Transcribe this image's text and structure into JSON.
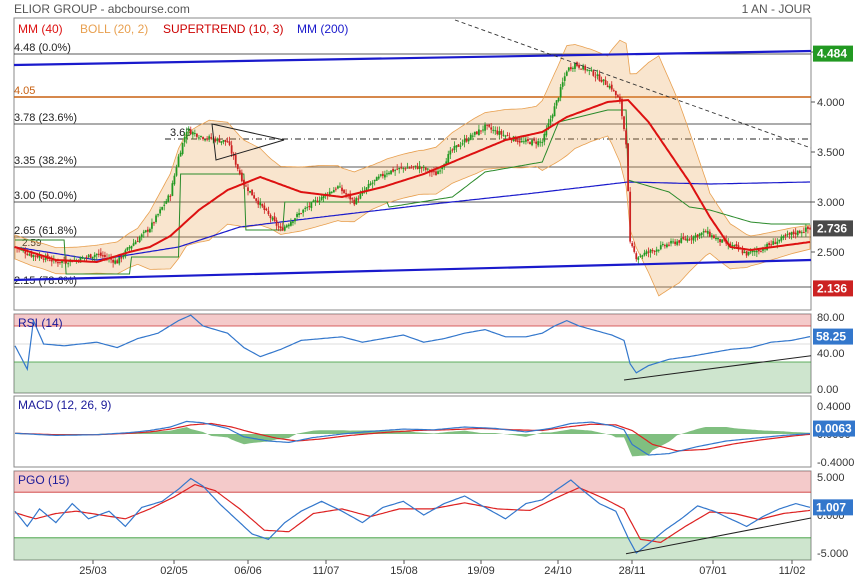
{
  "header": {
    "title": "ELIOR GROUP - abcbourse.com",
    "period": "1 AN - JOUR"
  },
  "colors": {
    "mm40": "#dd1111",
    "boll": "#e8a050",
    "supertrend": "#cc0000",
    "mm200": "#1a1acc",
    "candle_up": "#229922",
    "candle_down": "#cc2222",
    "trend": "#1a1acc",
    "resistance": "#c86010",
    "price_badge": "#4a4a4a",
    "rsi": "#3377cc",
    "signal": "#dd2222",
    "macd_hist": "#55aa55"
  },
  "chart_data": [
    {
      "id": "price",
      "type": "line",
      "legend": [
        "MM (40)",
        "BOLL (20, 2)",
        "SUPERTREND (10, 3)",
        "MM (200)"
      ],
      "x_ticks": [
        "25/03",
        "02/05",
        "06/06",
        "11/07",
        "15/08",
        "19/09",
        "24/10",
        "28/11",
        "07/01",
        "11/02"
      ],
      "y_ticks": [
        "4.500",
        "4.000",
        "3.500",
        "3.000",
        "2.500"
      ],
      "ylim": [
        2.0,
        4.6
      ],
      "fib_levels": [
        {
          "value": 4.48,
          "label": "4.48 (0.0%)"
        },
        {
          "value": 3.78,
          "label": "3.78 (23.6%)"
        },
        {
          "value": 3.35,
          "label": "3.35 (38.2%)"
        },
        {
          "value": 3.0,
          "label": "3.00 (50.0%)"
        },
        {
          "value": 2.65,
          "label": "2.65 (61.8%)"
        },
        {
          "value": 2.15,
          "label": "2.15 (78.6%)"
        }
      ],
      "resistance": {
        "value": 4.05,
        "label": "4.05"
      },
      "pivot": {
        "value": 3.63,
        "label": "3.63"
      },
      "extra_label": "2.59",
      "badges": [
        {
          "value": 4.484,
          "label": "4.484",
          "kind": "top"
        },
        {
          "value": 2.736,
          "label": "2.736",
          "kind": "last"
        },
        {
          "value": 2.136,
          "label": "2.136",
          "kind": "low"
        }
      ],
      "close_anchors": [
        [
          0,
          2.55
        ],
        [
          8,
          2.47
        ],
        [
          14,
          2.45
        ],
        [
          20,
          2.4
        ],
        [
          30,
          2.42
        ],
        [
          40,
          2.48
        ],
        [
          50,
          2.4
        ],
        [
          56,
          2.55
        ],
        [
          66,
          2.74
        ],
        [
          76,
          3.08
        ],
        [
          80,
          3.45
        ],
        [
          84,
          3.72
        ],
        [
          92,
          3.65
        ],
        [
          104,
          3.6
        ],
        [
          112,
          3.18
        ],
        [
          122,
          2.92
        ],
        [
          130,
          2.72
        ],
        [
          140,
          2.9
        ],
        [
          150,
          3.05
        ],
        [
          158,
          3.15
        ],
        [
          166,
          3.0
        ],
        [
          174,
          3.18
        ],
        [
          182,
          3.3
        ],
        [
          190,
          3.34
        ],
        [
          198,
          3.35
        ],
        [
          206,
          3.28
        ],
        [
          214,
          3.52
        ],
        [
          222,
          3.64
        ],
        [
          230,
          3.75
        ],
        [
          238,
          3.68
        ],
        [
          248,
          3.6
        ],
        [
          258,
          3.6
        ],
        [
          266,
          4.06
        ],
        [
          270,
          4.32
        ],
        [
          274,
          4.38
        ],
        [
          282,
          4.3
        ],
        [
          292,
          4.14
        ],
        [
          296,
          4.0
        ],
        [
          299,
          3.6
        ],
        [
          301,
          2.58
        ],
        [
          304,
          2.45
        ],
        [
          310,
          2.5
        ],
        [
          320,
          2.58
        ],
        [
          330,
          2.64
        ],
        [
          338,
          2.7
        ],
        [
          344,
          2.62
        ],
        [
          352,
          2.55
        ],
        [
          358,
          2.48
        ],
        [
          364,
          2.52
        ],
        [
          372,
          2.6
        ],
        [
          380,
          2.68
        ],
        [
          389,
          2.736
        ]
      ],
      "mm40_anchors": [
        [
          0,
          2.55
        ],
        [
          20,
          2.42
        ],
        [
          40,
          2.4
        ],
        [
          56,
          2.5
        ],
        [
          66,
          2.55
        ],
        [
          76,
          2.66
        ],
        [
          90,
          2.92
        ],
        [
          104,
          3.12
        ],
        [
          120,
          3.25
        ],
        [
          140,
          3.1
        ],
        [
          160,
          3.05
        ],
        [
          180,
          3.15
        ],
        [
          200,
          3.28
        ],
        [
          220,
          3.45
        ],
        [
          240,
          3.62
        ],
        [
          258,
          3.7
        ],
        [
          270,
          3.85
        ],
        [
          290,
          4.0
        ],
        [
          300,
          4.02
        ],
        [
          310,
          3.8
        ],
        [
          320,
          3.5
        ],
        [
          330,
          3.2
        ],
        [
          340,
          2.85
        ],
        [
          350,
          2.55
        ],
        [
          360,
          2.52
        ],
        [
          389,
          2.6
        ]
      ],
      "mm200_anchors": [
        [
          0,
          2.55
        ],
        [
          40,
          2.42
        ],
        [
          80,
          2.55
        ],
        [
          110,
          2.75
        ],
        [
          150,
          2.85
        ],
        [
          200,
          2.97
        ],
        [
          250,
          3.08
        ],
        [
          300,
          3.2
        ],
        [
          340,
          3.18
        ],
        [
          389,
          3.2
        ]
      ],
      "supertrend_anchors": [
        [
          0,
          2.62
        ],
        [
          24,
          2.62
        ],
        [
          25,
          2.28
        ],
        [
          56,
          2.28
        ],
        [
          57,
          2.45
        ],
        [
          80,
          2.45
        ],
        [
          81,
          3.28
        ],
        [
          112,
          3.28
        ],
        [
          113,
          2.72
        ],
        [
          131,
          2.72
        ],
        [
          132,
          3.0
        ],
        [
          182,
          3.0
        ],
        [
          183,
          2.95
        ],
        [
          214,
          3.05
        ],
        [
          230,
          3.3
        ],
        [
          258,
          3.4
        ],
        [
          266,
          3.8
        ],
        [
          290,
          3.92
        ],
        [
          299,
          3.92
        ],
        [
          300,
          3.22
        ],
        [
          320,
          3.1
        ],
        [
          330,
          2.95
        ],
        [
          340,
          2.92
        ],
        [
          350,
          2.86
        ],
        [
          360,
          2.8
        ],
        [
          370,
          2.78
        ],
        [
          389,
          2.78
        ]
      ],
      "boll_width_anchors": [
        [
          0,
          0.12
        ],
        [
          40,
          0.14
        ],
        [
          60,
          0.18
        ],
        [
          80,
          0.55
        ],
        [
          95,
          0.6
        ],
        [
          110,
          0.45
        ],
        [
          125,
          0.35
        ],
        [
          150,
          0.3
        ],
        [
          175,
          0.22
        ],
        [
          200,
          0.22
        ],
        [
          225,
          0.28
        ],
        [
          255,
          0.3
        ],
        [
          270,
          0.55
        ],
        [
          290,
          0.4
        ],
        [
          300,
          0.75
        ],
        [
          315,
          1.2
        ],
        [
          325,
          0.9
        ],
        [
          340,
          0.3
        ],
        [
          360,
          0.15
        ],
        [
          389,
          0.12
        ]
      ]
    },
    {
      "id": "rsi",
      "type": "line",
      "title": "RSI (14)",
      "ylim": [
        0,
        100
      ],
      "zones": [
        70,
        30
      ],
      "y_ticks": [
        "80.00",
        "40.00",
        "0.00"
      ],
      "last_label": "58.25",
      "anchors": [
        [
          0,
          48
        ],
        [
          6,
          22
        ],
        [
          9,
          76
        ],
        [
          14,
          50
        ],
        [
          24,
          48
        ],
        [
          40,
          52
        ],
        [
          50,
          46
        ],
        [
          60,
          56
        ],
        [
          70,
          62
        ],
        [
          80,
          76
        ],
        [
          86,
          82
        ],
        [
          92,
          70
        ],
        [
          104,
          62
        ],
        [
          112,
          46
        ],
        [
          120,
          36
        ],
        [
          130,
          44
        ],
        [
          140,
          54
        ],
        [
          150,
          56
        ],
        [
          160,
          58
        ],
        [
          170,
          52
        ],
        [
          180,
          56
        ],
        [
          190,
          60
        ],
        [
          200,
          52
        ],
        [
          210,
          56
        ],
        [
          220,
          62
        ],
        [
          230,
          66
        ],
        [
          240,
          58
        ],
        [
          250,
          58
        ],
        [
          258,
          62
        ],
        [
          264,
          70
        ],
        [
          270,
          76
        ],
        [
          276,
          70
        ],
        [
          284,
          65
        ],
        [
          292,
          60
        ],
        [
          298,
          54
        ],
        [
          301,
          28
        ],
        [
          304,
          18
        ],
        [
          310,
          26
        ],
        [
          320,
          33
        ],
        [
          330,
          36
        ],
        [
          340,
          40
        ],
        [
          350,
          44
        ],
        [
          360,
          46
        ],
        [
          370,
          52
        ],
        [
          380,
          54
        ],
        [
          389,
          58.25
        ]
      ]
    },
    {
      "id": "macd",
      "type": "line",
      "title": "MACD (12, 26, 9)",
      "ylim": [
        -0.5,
        0.5
      ],
      "y_ticks": [
        "0.4000",
        "0.0000",
        "-0.4000"
      ],
      "last_label": "0.0063",
      "macd_anchors": [
        [
          0,
          0.01
        ],
        [
          20,
          -0.02
        ],
        [
          40,
          -0.01
        ],
        [
          56,
          0.02
        ],
        [
          66,
          0.05
        ],
        [
          76,
          0.1
        ],
        [
          84,
          0.18
        ],
        [
          92,
          0.16
        ],
        [
          104,
          0.08
        ],
        [
          112,
          -0.04
        ],
        [
          124,
          -0.1
        ],
        [
          134,
          -0.12
        ],
        [
          146,
          -0.05
        ],
        [
          160,
          0.0
        ],
        [
          175,
          0.04
        ],
        [
          190,
          0.07
        ],
        [
          205,
          0.06
        ],
        [
          220,
          0.1
        ],
        [
          235,
          0.08
        ],
        [
          250,
          0.03
        ],
        [
          262,
          0.08
        ],
        [
          272,
          0.15
        ],
        [
          282,
          0.17
        ],
        [
          292,
          0.12
        ],
        [
          298,
          0.06
        ],
        [
          302,
          -0.15
        ],
        [
          310,
          -0.3
        ],
        [
          320,
          -0.28
        ],
        [
          334,
          -0.18
        ],
        [
          348,
          -0.1
        ],
        [
          362,
          -0.06
        ],
        [
          376,
          -0.02
        ],
        [
          389,
          0.0063
        ]
      ],
      "signal_anchors": [
        [
          0,
          0.01
        ],
        [
          20,
          -0.01
        ],
        [
          40,
          -0.01
        ],
        [
          56,
          0.01
        ],
        [
          66,
          0.03
        ],
        [
          76,
          0.07
        ],
        [
          86,
          0.13
        ],
        [
          96,
          0.15
        ],
        [
          106,
          0.1
        ],
        [
          116,
          0.02
        ],
        [
          128,
          -0.06
        ],
        [
          138,
          -0.1
        ],
        [
          150,
          -0.07
        ],
        [
          164,
          -0.02
        ],
        [
          180,
          0.02
        ],
        [
          196,
          0.05
        ],
        [
          212,
          0.06
        ],
        [
          228,
          0.08
        ],
        [
          244,
          0.06
        ],
        [
          258,
          0.05
        ],
        [
          270,
          0.1
        ],
        [
          282,
          0.14
        ],
        [
          294,
          0.13
        ],
        [
          302,
          0.05
        ],
        [
          312,
          -0.15
        ],
        [
          324,
          -0.24
        ],
        [
          338,
          -0.22
        ],
        [
          352,
          -0.14
        ],
        [
          366,
          -0.08
        ],
        [
          380,
          -0.03
        ],
        [
          389,
          -0.005
        ]
      ]
    },
    {
      "id": "pgo",
      "type": "line",
      "title": "PGO (15)",
      "ylim": [
        -6,
        6
      ],
      "zones": [
        3,
        -3
      ],
      "y_ticks": [
        "5.000",
        "0.000",
        "-5.000"
      ],
      "last_label": "1.007",
      "pgo_anchors": [
        [
          0,
          0.5
        ],
        [
          6,
          -1.5
        ],
        [
          12,
          0.8
        ],
        [
          20,
          -1.0
        ],
        [
          28,
          1.5
        ],
        [
          36,
          -0.5
        ],
        [
          46,
          0.5
        ],
        [
          54,
          -1.5
        ],
        [
          62,
          1.0
        ],
        [
          72,
          1.8
        ],
        [
          80,
          3.4
        ],
        [
          86,
          4.8
        ],
        [
          92,
          3.8
        ],
        [
          100,
          1.5
        ],
        [
          108,
          -0.5
        ],
        [
          116,
          -2.5
        ],
        [
          124,
          -3.2
        ],
        [
          132,
          -1.0
        ],
        [
          140,
          0.5
        ],
        [
          150,
          1.8
        ],
        [
          160,
          0.5
        ],
        [
          170,
          -1.0
        ],
        [
          180,
          1.0
        ],
        [
          190,
          1.8
        ],
        [
          200,
          0.0
        ],
        [
          210,
          1.5
        ],
        [
          220,
          2.5
        ],
        [
          230,
          1.0
        ],
        [
          240,
          -0.5
        ],
        [
          250,
          1.5
        ],
        [
          258,
          2.0
        ],
        [
          266,
          3.5
        ],
        [
          272,
          4.6
        ],
        [
          278,
          3.2
        ],
        [
          286,
          1.5
        ],
        [
          294,
          0.5
        ],
        [
          300,
          -3.0
        ],
        [
          304,
          -5.0
        ],
        [
          310,
          -3.8
        ],
        [
          318,
          -2.0
        ],
        [
          326,
          -0.5
        ],
        [
          334,
          1.2
        ],
        [
          342,
          0.5
        ],
        [
          350,
          -0.5
        ],
        [
          358,
          -1.5
        ],
        [
          366,
          -0.2
        ],
        [
          374,
          0.8
        ],
        [
          382,
          1.5
        ],
        [
          389,
          1.007
        ]
      ],
      "signal_anchors": [
        [
          0,
          0.3
        ],
        [
          10,
          -0.5
        ],
        [
          20,
          0.2
        ],
        [
          30,
          0.5
        ],
        [
          42,
          0.0
        ],
        [
          54,
          -0.5
        ],
        [
          66,
          0.8
        ],
        [
          78,
          2.4
        ],
        [
          88,
          4.0
        ],
        [
          98,
          3.2
        ],
        [
          110,
          0.8
        ],
        [
          122,
          -2.0
        ],
        [
          134,
          -2.2
        ],
        [
          146,
          0.2
        ],
        [
          160,
          0.8
        ],
        [
          174,
          -0.2
        ],
        [
          188,
          0.8
        ],
        [
          204,
          0.8
        ],
        [
          220,
          1.6
        ],
        [
          236,
          0.8
        ],
        [
          252,
          0.6
        ],
        [
          266,
          2.4
        ],
        [
          276,
          3.6
        ],
        [
          288,
          2.2
        ],
        [
          298,
          0.8
        ],
        [
          306,
          -3.2
        ],
        [
          316,
          -3.6
        ],
        [
          328,
          -1.5
        ],
        [
          340,
          0.4
        ],
        [
          352,
          0.2
        ],
        [
          364,
          -0.6
        ],
        [
          376,
          0.2
        ],
        [
          389,
          0.6
        ]
      ]
    }
  ]
}
